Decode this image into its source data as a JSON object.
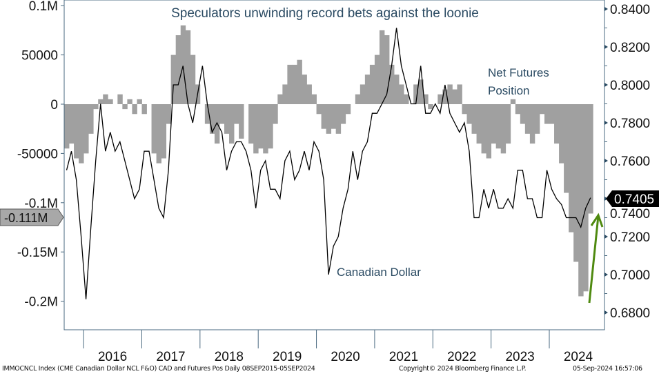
{
  "chart_data": {
    "type": "bar+line",
    "title": "Speculators unwinding record bets against the loonie",
    "x": {
      "start": "2015-09",
      "end": "2024-09",
      "tick_labels": [
        "2016",
        "2017",
        "2018",
        "2019",
        "2020",
        "2021",
        "2022",
        "2023",
        "2024"
      ]
    },
    "left_axis": {
      "ylim": [
        -210000,
        105000
      ],
      "tick_values": [
        100000,
        50000,
        0,
        -50000,
        -100000,
        -150000,
        -200000
      ],
      "tick_labels": [
        "0.1M",
        "50000",
        "0",
        "-50000",
        "-0.1M",
        "-0.15M",
        "-0.2M"
      ],
      "last_value_label": "-0.111M"
    },
    "right_axis": {
      "ylim": [
        0.6755,
        0.8445
      ],
      "tick_values": [
        0.84,
        0.82,
        0.8,
        0.78,
        0.76,
        0.74,
        0.72,
        0.7,
        0.68
      ],
      "tick_labels": [
        "0.8400",
        "0.8200",
        "0.8000",
        "0.7800",
        "0.7600",
        "0.7400",
        "0.7200",
        "0.7000",
        "0.6800"
      ],
      "last_value_label": "0.7405"
    },
    "series": [
      {
        "name": "Net Futures Position",
        "type": "bar",
        "axis": "left",
        "color": "#a0a0a0",
        "frequency": "monthly",
        "values": [
          -45000,
          -40000,
          -55000,
          -60000,
          -50000,
          -30000,
          -5000,
          5000,
          10000,
          5000,
          0,
          10000,
          -5000,
          5000,
          -10000,
          5000,
          -10000,
          0,
          -50000,
          -60000,
          -55000,
          -20000,
          50000,
          70000,
          80000,
          75000,
          50000,
          20000,
          0,
          -20000,
          -30000,
          -40000,
          -20000,
          -30000,
          -40000,
          -20000,
          -35000,
          0,
          -40000,
          -50000,
          -45000,
          -50000,
          -45000,
          -20000,
          10000,
          20000,
          40000,
          40000,
          45000,
          30000,
          20000,
          10000,
          -10000,
          -25000,
          -30000,
          -25000,
          -30000,
          -20000,
          -10000,
          0,
          10000,
          20000,
          30000,
          40000,
          50000,
          75000,
          70000,
          40000,
          30000,
          20000,
          10000,
          0,
          20000,
          25000,
          10000,
          -5000,
          0,
          10000,
          15000,
          20000,
          15000,
          20000,
          -10000,
          -20000,
          -30000,
          -40000,
          -50000,
          -55000,
          -40000,
          -45000,
          -50000,
          -40000,
          5000,
          -10000,
          -20000,
          -30000,
          -40000,
          -30000,
          -10000,
          -20000,
          -20000,
          -40000,
          -60000,
          -90000,
          -130000,
          -160000,
          -195000,
          -190000,
          -111000
        ]
      },
      {
        "name": "Canadian Dollar",
        "type": "line",
        "axis": "right",
        "color": "#000000",
        "frequency": "monthly",
        "values": [
          0.755,
          0.765,
          0.75,
          0.72,
          0.687,
          0.725,
          0.76,
          0.79,
          0.765,
          0.775,
          0.765,
          0.77,
          0.76,
          0.75,
          0.74,
          0.745,
          0.765,
          0.765,
          0.75,
          0.735,
          0.73,
          0.755,
          0.8,
          0.8,
          0.81,
          0.79,
          0.78,
          0.795,
          0.81,
          0.79,
          0.775,
          0.78,
          0.775,
          0.755,
          0.765,
          0.77,
          0.77,
          0.765,
          0.755,
          0.735,
          0.755,
          0.76,
          0.745,
          0.745,
          0.74,
          0.76,
          0.765,
          0.75,
          0.755,
          0.765,
          0.755,
          0.77,
          0.765,
          0.75,
          0.7,
          0.715,
          0.72,
          0.735,
          0.745,
          0.765,
          0.75,
          0.765,
          0.77,
          0.785,
          0.785,
          0.79,
          0.795,
          0.81,
          0.83,
          0.81,
          0.8,
          0.79,
          0.79,
          0.81,
          0.785,
          0.785,
          0.79,
          0.785,
          0.8,
          0.785,
          0.78,
          0.775,
          0.78,
          0.765,
          0.73,
          0.73,
          0.745,
          0.735,
          0.745,
          0.735,
          0.735,
          0.74,
          0.735,
          0.755,
          0.755,
          0.74,
          0.74,
          0.73,
          0.73,
          0.755,
          0.745,
          0.74,
          0.737,
          0.73,
          0.73,
          0.73,
          0.725,
          0.735,
          0.7405
        ]
      }
    ],
    "annotations": {
      "net_futures_line1": "Net Futures",
      "net_futures_line2": "Position",
      "canadian_dollar": "Canadian Dollar"
    },
    "grid": false,
    "legend": "none",
    "arrow_color": "#4f8a10"
  },
  "footer": {
    "source": "IMMOCNCL Index (CME Canadian Dollar NCL F&O) CAD and Futures Pos  Daily 08SEP2015-05SEP2024",
    "copyright": "Copyright© 2024 Bloomberg Finance L.P.",
    "timestamp": "05-Sep-2024 16:57:06"
  }
}
